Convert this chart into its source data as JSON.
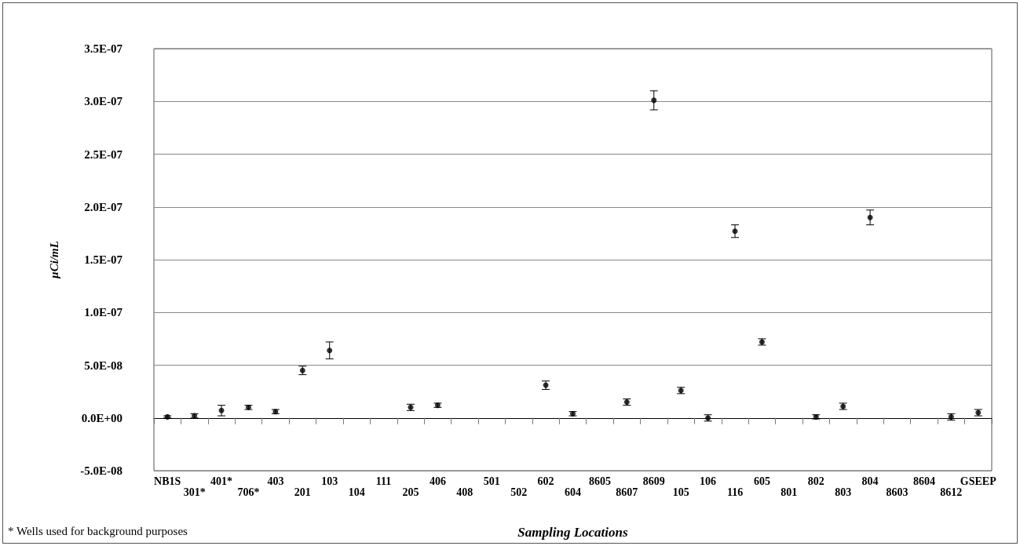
{
  "chart_data": {
    "type": "scatter",
    "xlabel": "Sampling Locations",
    "ylabel": "µCi/mL",
    "annotations": [
      "* Wells used for background purposes"
    ],
    "categories": [
      "NB1S",
      "301*",
      "401*",
      "706*",
      "403",
      "201",
      "103",
      "104",
      "111",
      "205",
      "406",
      "408",
      "501",
      "502",
      "602",
      "604",
      "8605",
      "8607",
      "8609",
      "105",
      "106",
      "116",
      "605",
      "801",
      "802",
      "803",
      "804",
      "8603",
      "8604",
      "8612",
      "GSEEP"
    ],
    "values": [
      1e-09,
      2e-09,
      7e-09,
      1e-08,
      6e-09,
      4.5e-08,
      6.4e-08,
      null,
      null,
      1e-08,
      1.2e-08,
      null,
      null,
      null,
      3.1e-08,
      4e-09,
      null,
      1.5e-08,
      3.01e-07,
      2.6e-08,
      0,
      1.77e-07,
      7.2e-08,
      null,
      1e-09,
      1.1e-08,
      1.9e-07,
      null,
      null,
      1e-09,
      5e-09
    ],
    "errors": [
      1e-09,
      2e-09,
      5e-09,
      2e-09,
      2e-09,
      4e-09,
      8e-09,
      null,
      null,
      3e-09,
      2e-09,
      null,
      null,
      null,
      4e-09,
      2e-09,
      null,
      3e-09,
      9e-09,
      3e-09,
      3e-09,
      6e-09,
      3e-09,
      null,
      2e-09,
      3e-09,
      7e-09,
      null,
      null,
      3e-09,
      3e-09
    ],
    "color": "#000000",
    "ylim": [
      -5e-08,
      3.5e-07
    ],
    "yticks": [
      {
        "value": -5e-08,
        "label": "-5.0E-08"
      },
      {
        "value": 0,
        "label": "0.0E+00"
      },
      {
        "value": 5e-08,
        "label": "5.0E-08"
      },
      {
        "value": 1e-07,
        "label": "1.0E-07"
      },
      {
        "value": 1.5e-07,
        "label": "1.5E-07"
      },
      {
        "value": 2e-07,
        "label": "2.0E-07"
      },
      {
        "value": 2.5e-07,
        "label": "2.5E-07"
      },
      {
        "value": 3e-07,
        "label": "3.0E-07"
      },
      {
        "value": 3.5e-07,
        "label": "3.5E-07"
      }
    ],
    "grid": "y",
    "marker": "circle"
  }
}
